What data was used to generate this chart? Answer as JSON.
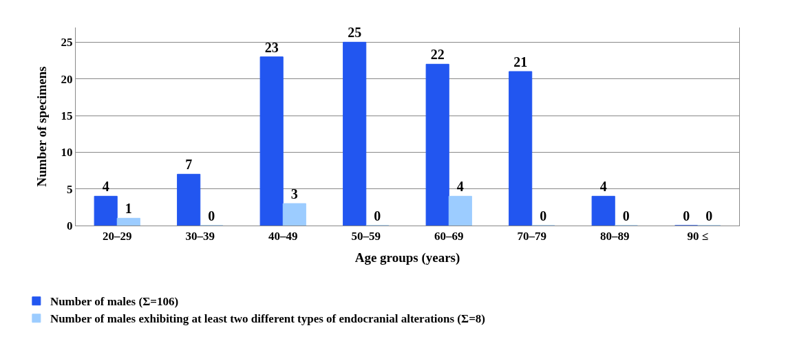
{
  "chart_data": {
    "type": "bar",
    "xlabel": "Age groups (years)",
    "ylabel": "Number of specimens",
    "categories": [
      "20–29",
      "30–39",
      "40–49",
      "50–59",
      "60–69",
      "70–79",
      "80–89",
      "90 ≤"
    ],
    "series": [
      {
        "name": "Number of males (Σ=106)",
        "color": "#2256f0",
        "values": [
          4,
          7,
          23,
          25,
          22,
          21,
          4,
          0
        ]
      },
      {
        "name": "Number of males exhibiting at least two different types of endocranial alterations (Σ=8)",
        "color": "#9cccff",
        "values": [
          1,
          0,
          3,
          0,
          4,
          0,
          0,
          0
        ]
      }
    ],
    "ylim": [
      0,
      27
    ],
    "yticks": [
      0,
      5,
      10,
      15,
      20,
      25
    ],
    "grid": "y",
    "data_labels": true,
    "legend": "bottom left"
  }
}
